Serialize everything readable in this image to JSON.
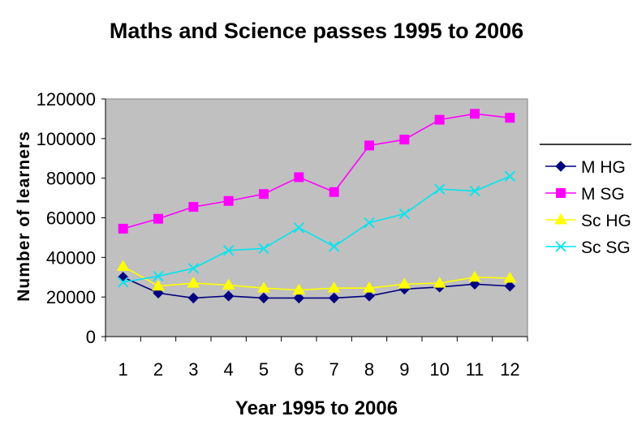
{
  "chart_data": {
    "type": "line",
    "title": "Maths and Science passes 1995 to 2006",
    "xlabel": "Year 1995 to 2006",
    "ylabel": "Number of learners",
    "ylim": [
      0,
      120000
    ],
    "yticks": [
      "0",
      "20000",
      "40000",
      "60000",
      "80000",
      "100000",
      "120000"
    ],
    "categories": [
      "1",
      "2",
      "3",
      "4",
      "5",
      "6",
      "7",
      "8",
      "9",
      "10",
      "11",
      "12"
    ],
    "grid": false,
    "legend": "right",
    "plot_background": "#c0c0c0",
    "series": [
      {
        "name": "M HG",
        "color": "#000080",
        "marker": "diamond",
        "values": [
          30000,
          22000,
          19500,
          20500,
          19500,
          19500,
          19500,
          20500,
          24000,
          25000,
          26500,
          25500
        ]
      },
      {
        "name": "M SG",
        "color": "#ff00ff",
        "marker": "square",
        "values": [
          54500,
          59500,
          65500,
          68500,
          72000,
          80500,
          73000,
          96500,
          99500,
          109500,
          112500,
          110500
        ]
      },
      {
        "name": "Sc HG",
        "color": "#ffff00",
        "marker": "triangle",
        "values": [
          35500,
          25500,
          27000,
          26000,
          24500,
          23500,
          24500,
          24500,
          26500,
          27000,
          30000,
          29500
        ]
      },
      {
        "name": "Sc SG",
        "color": "#00e5ee",
        "marker": "x",
        "values": [
          27500,
          30500,
          34500,
          43500,
          44500,
          55000,
          45500,
          57500,
          62000,
          74500,
          73500,
          81000
        ]
      }
    ]
  }
}
